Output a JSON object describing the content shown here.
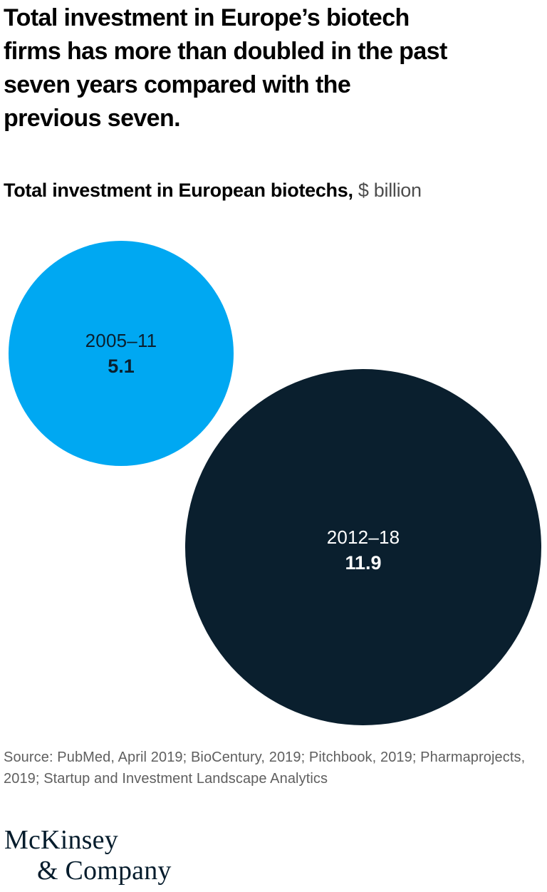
{
  "title": {
    "lines": [
      "Total investment in Europe’s biotech",
      "firms has more than doubled in the past",
      "seven years compared with the",
      "previous seven."
    ],
    "full": "Total investment in Europe’s biotech firms has more than doubled in the past seven years compared with the previous seven."
  },
  "subtitle": {
    "bold": "Total investment in European biotechs,",
    "unit": " $ billion"
  },
  "chart_data": {
    "type": "scatter",
    "subtype": "proportional-area-bubble",
    "title": "Total investment in European biotechs",
    "unit": "$ billion",
    "series": [
      {
        "label": "2005–11",
        "value": 5.1,
        "color": "#00a8f2",
        "text_color": "#0a1f2e"
      },
      {
        "label": "2012–18",
        "value": 11.9,
        "color": "#0a1f2e",
        "text_color": "#ffffff"
      }
    ],
    "layout_hint": "two overlapping-scale circles, small upper-left, large lower-right, areas proportional to values"
  },
  "colors": {
    "accent_light_blue": "#00a8f2",
    "accent_deep_navy": "#0a1f2e",
    "source_gray": "#5f5f5f",
    "logo_navy": "#051c2c",
    "background": "#ffffff"
  },
  "source": {
    "lines": [
      "Source: PubMed, April 2019; BioCentury, 2019; Pitchbook, 2019; Pharmaprojects,",
      "2019; Startup and Investment Landscape Analytics"
    ],
    "full": "Source: PubMed, April 2019; BioCentury, 2019; Pitchbook, 2019; Pharmaprojects, 2019; Startup and Investment Landscape Analytics"
  },
  "logo": {
    "line1": "McKinsey",
    "line2": "& Company"
  }
}
